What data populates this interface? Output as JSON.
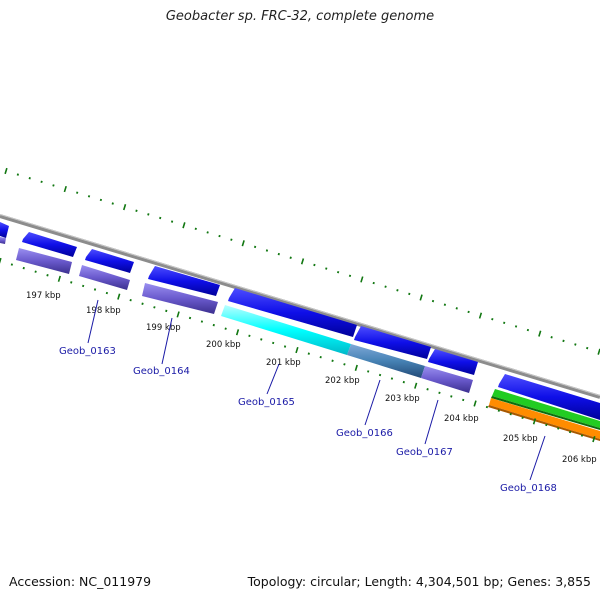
{
  "title": "Geobacter sp. FRC-32, complete genome",
  "accession": "Accession: NC_011979",
  "summary": "Topology: circular; Length: 4,304,501 bp; Genes: 3,855",
  "kbp_labels": [
    "197 kbp",
    "198 kbp",
    "199 kbp",
    "200 kbp",
    "201 kbp",
    "202 kbp",
    "203 kbp",
    "204 kbp",
    "205 kbp",
    "206 kbp"
  ],
  "locus_labels": [
    "Geob_0163",
    "Geob_0164",
    "Geob_0165",
    "Geob_0166",
    "Geob_0167",
    "Geob_0168"
  ],
  "colors": {
    "backbone": "#8c8c8c",
    "cds": "#1010e6",
    "gene_slate": "#6a5acd",
    "highlight_cyan": "#00ffff",
    "highlight_teal": "#4682b4",
    "tick": "#117711",
    "rrna_green": "#22cc22",
    "rrna_orange": "#ff8c00",
    "label_blue": "#1a1aa6"
  }
}
